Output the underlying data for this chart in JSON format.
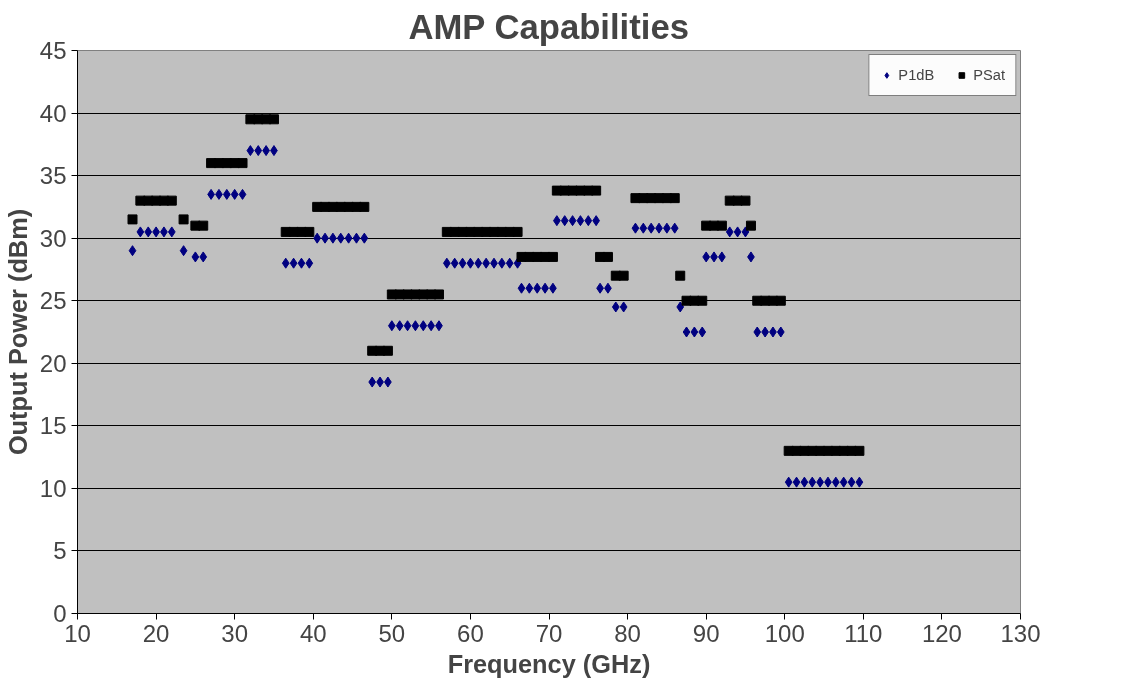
{
  "chart_data": {
    "type": "scatter",
    "title": "AMP Capabilities",
    "xlabel": "Frequency (GHz)",
    "ylabel": "Output Power (dBm)",
    "xlim": [
      10,
      130
    ],
    "xticks": [
      10,
      20,
      30,
      40,
      50,
      60,
      70,
      80,
      90,
      100,
      110,
      120,
      130
    ],
    "ylim": [
      0,
      45
    ],
    "yticks": [
      0,
      5,
      10,
      15,
      20,
      25,
      30,
      35,
      40,
      45
    ],
    "grid": "y",
    "legend": "top right",
    "series": [
      {
        "name": "P1dB",
        "color": "#000080",
        "marker": "diamond",
        "x": [
          17,
          18,
          19,
          20,
          21,
          22,
          23.5,
          25,
          26,
          27,
          28,
          29,
          30,
          31,
          32,
          33,
          34,
          35,
          36.5,
          37.5,
          38.5,
          39.5,
          40.5,
          41.5,
          42.5,
          43.5,
          44.5,
          45.5,
          46.5,
          47.5,
          48.5,
          49.5,
          50,
          51,
          52,
          53,
          54,
          55,
          56,
          57,
          58,
          59,
          60,
          61,
          62,
          63,
          64,
          65,
          66,
          66.5,
          67.5,
          68.5,
          69.5,
          70.5,
          71,
          72,
          73,
          74,
          75,
          76,
          76.5,
          77.5,
          78.5,
          79.5,
          81,
          82,
          83,
          84,
          85,
          86,
          86.7,
          87.5,
          88.5,
          89.5,
          90,
          91,
          92,
          93,
          94,
          95,
          95.7,
          96.5,
          97.5,
          98.5,
          99.5,
          100.5,
          101.5,
          102.5,
          103.5,
          104.5,
          105.5,
          106.5,
          107.5,
          108.5,
          109.5
        ],
        "values": [
          29,
          30.5,
          30.5,
          30.5,
          30.5,
          30.5,
          29,
          28.5,
          28.5,
          33.5,
          33.5,
          33.5,
          33.5,
          33.5,
          37,
          37,
          37,
          37,
          28,
          28,
          28,
          28,
          30,
          30,
          30,
          30,
          30,
          30,
          30,
          18.5,
          18.5,
          18.5,
          23,
          23,
          23,
          23,
          23,
          23,
          23,
          28,
          28,
          28,
          28,
          28,
          28,
          28,
          28,
          28,
          28,
          26,
          26,
          26,
          26,
          26,
          31.4,
          31.4,
          31.4,
          31.4,
          31.4,
          31.4,
          26,
          26,
          24.5,
          24.5,
          30.8,
          30.8,
          30.8,
          30.8,
          30.8,
          30.8,
          24.5,
          22.5,
          22.5,
          22.5,
          28.5,
          28.5,
          28.5,
          30.5,
          30.5,
          30.5,
          28.5,
          22.5,
          22.5,
          22.5,
          22.5,
          10.5,
          10.5,
          10.5,
          10.5,
          10.5,
          10.5,
          10.5,
          10.5,
          10.5,
          10.5
        ]
      },
      {
        "name": "PSat",
        "color": "#000000",
        "marker": "square",
        "x": [
          17,
          18,
          19,
          20,
          21,
          22,
          23.5,
          25,
          26,
          27,
          28,
          29,
          30,
          31,
          32,
          33,
          34,
          35,
          36.5,
          37.5,
          38.5,
          39.5,
          40.5,
          41.5,
          42.5,
          43.5,
          44.5,
          45.5,
          46.5,
          47.5,
          48.5,
          49.5,
          50,
          51,
          52,
          53,
          54,
          55,
          56,
          57,
          58,
          59,
          60,
          61,
          62,
          63,
          64,
          65,
          66,
          66.5,
          67.5,
          68.5,
          69.5,
          70.5,
          71,
          72,
          73,
          74,
          75,
          76,
          76.5,
          77.5,
          78.5,
          79.5,
          81,
          82,
          83,
          84,
          85,
          86,
          86.7,
          87.5,
          88.5,
          89.5,
          90,
          91,
          92,
          93,
          94,
          95,
          95.7,
          96.5,
          97.5,
          98.5,
          99.5,
          100.5,
          101.5,
          102.5,
          103.5,
          104.5,
          105.5,
          106.5,
          107.5,
          108.5,
          109.5
        ],
        "values": [
          31.5,
          33,
          33,
          33,
          33,
          33,
          31.5,
          31,
          31,
          36,
          36,
          36,
          36,
          36,
          39.5,
          39.5,
          39.5,
          39.5,
          30.5,
          30.5,
          30.5,
          30.5,
          32.5,
          32.5,
          32.5,
          32.5,
          32.5,
          32.5,
          32.5,
          21,
          21,
          21,
          25.5,
          25.5,
          25.5,
          25.5,
          25.5,
          25.5,
          25.5,
          30.5,
          30.5,
          30.5,
          30.5,
          30.5,
          30.5,
          30.5,
          30.5,
          30.5,
          30.5,
          28.5,
          28.5,
          28.5,
          28.5,
          28.5,
          33.8,
          33.8,
          33.8,
          33.8,
          33.8,
          33.8,
          28.5,
          28.5,
          27,
          27,
          33.2,
          33.2,
          33.2,
          33.2,
          33.2,
          33.2,
          27,
          25,
          25,
          25,
          31,
          31,
          31,
          33,
          33,
          33,
          31,
          25,
          25,
          25,
          25,
          13,
          13,
          13,
          13,
          13,
          13,
          13,
          13,
          13,
          13
        ]
      }
    ]
  }
}
